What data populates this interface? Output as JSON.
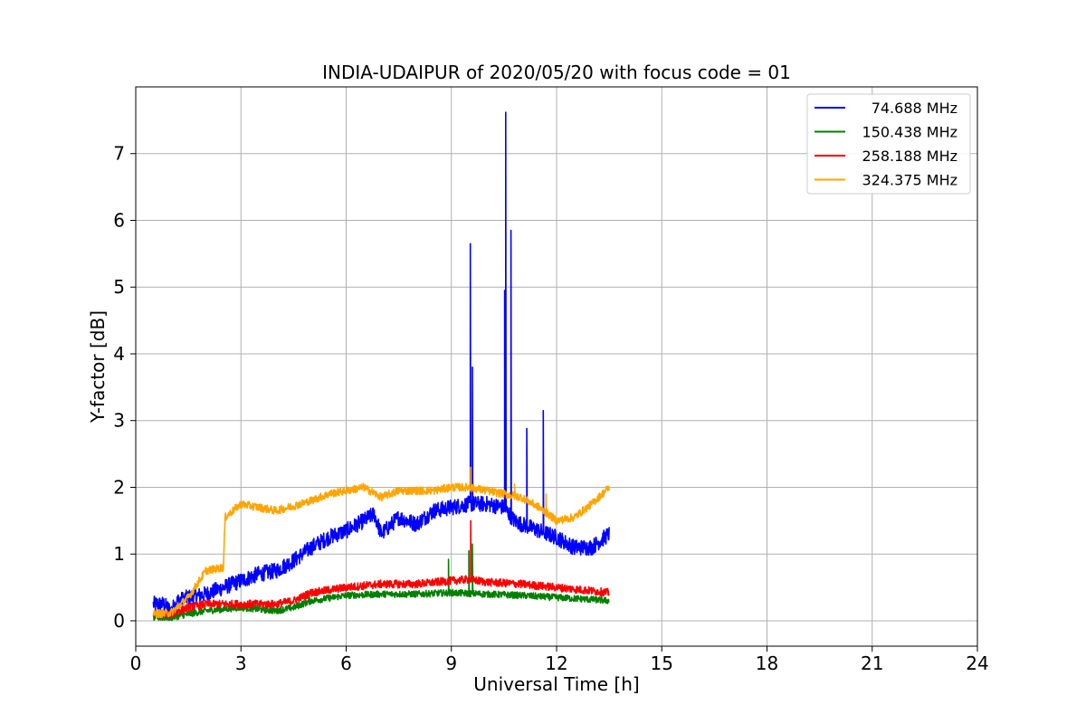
{
  "chart_data": {
    "type": "line",
    "title": "INDIA-UDAIPUR of 2020/05/20 with focus code = 01",
    "xlabel": "Universal Time [h]",
    "ylabel": "Y-factor [dB]",
    "xlim": [
      0,
      24
    ],
    "ylim": [
      -0.38,
      8.0
    ],
    "xticks": [
      0,
      3,
      6,
      9,
      12,
      15,
      18,
      21,
      24
    ],
    "yticks": [
      0,
      1,
      2,
      3,
      4,
      5,
      6,
      7
    ],
    "grid": true,
    "legend_position": "top-right",
    "series": [
      {
        "name": "74.688 MHz",
        "color": "#0000ff",
        "noise": 0.12,
        "points": [
          [
            0.5,
            0.25
          ],
          [
            0.8,
            0.25
          ],
          [
            1.0,
            0.15
          ],
          [
            1.2,
            0.3
          ],
          [
            1.5,
            0.35
          ],
          [
            2.0,
            0.4
          ],
          [
            2.5,
            0.5
          ],
          [
            3.0,
            0.6
          ],
          [
            3.5,
            0.7
          ],
          [
            4.0,
            0.75
          ],
          [
            4.5,
            0.9
          ],
          [
            5.0,
            1.1
          ],
          [
            5.5,
            1.25
          ],
          [
            6.0,
            1.35
          ],
          [
            6.5,
            1.5
          ],
          [
            6.8,
            1.6
          ],
          [
            7.0,
            1.3
          ],
          [
            7.5,
            1.55
          ],
          [
            8.0,
            1.45
          ],
          [
            8.5,
            1.65
          ],
          [
            9.0,
            1.7
          ],
          [
            9.5,
            1.75
          ],
          [
            10.0,
            1.75
          ],
          [
            10.5,
            1.7
          ],
          [
            10.8,
            1.5
          ],
          [
            11.0,
            1.45
          ],
          [
            11.5,
            1.35
          ],
          [
            12.0,
            1.25
          ],
          [
            12.5,
            1.1
          ],
          [
            13.0,
            1.1
          ],
          [
            13.5,
            1.3
          ]
        ],
        "spikes": [
          [
            9.54,
            5.65
          ],
          [
            9.6,
            3.8
          ],
          [
            10.55,
            7.62
          ],
          [
            10.7,
            5.85
          ],
          [
            10.52,
            4.95
          ],
          [
            11.15,
            2.88
          ],
          [
            11.62,
            3.15
          ]
        ]
      },
      {
        "name": "150.438 MHz",
        "color": "#008000",
        "noise": 0.05,
        "points": [
          [
            0.5,
            0.05
          ],
          [
            1.0,
            0.05
          ],
          [
            2.0,
            0.15
          ],
          [
            3.0,
            0.2
          ],
          [
            4.0,
            0.15
          ],
          [
            4.5,
            0.2
          ],
          [
            5.0,
            0.3
          ],
          [
            6.0,
            0.38
          ],
          [
            7.0,
            0.4
          ],
          [
            8.0,
            0.4
          ],
          [
            9.0,
            0.42
          ],
          [
            10.0,
            0.4
          ],
          [
            11.0,
            0.38
          ],
          [
            12.0,
            0.35
          ],
          [
            13.0,
            0.32
          ],
          [
            13.5,
            0.3
          ]
        ],
        "spikes": [
          [
            8.92,
            0.92
          ],
          [
            9.5,
            1.05
          ],
          [
            9.6,
            1.15
          ]
        ]
      },
      {
        "name": "258.188 MHz",
        "color": "#ff0000",
        "noise": 0.06,
        "points": [
          [
            0.5,
            0.1
          ],
          [
            1.0,
            0.1
          ],
          [
            1.5,
            0.2
          ],
          [
            2.0,
            0.25
          ],
          [
            3.0,
            0.25
          ],
          [
            4.0,
            0.25
          ],
          [
            4.5,
            0.3
          ],
          [
            5.0,
            0.42
          ],
          [
            6.0,
            0.5
          ],
          [
            7.0,
            0.55
          ],
          [
            8.0,
            0.55
          ],
          [
            9.0,
            0.6
          ],
          [
            9.5,
            0.62
          ],
          [
            10.0,
            0.58
          ],
          [
            11.0,
            0.55
          ],
          [
            12.0,
            0.5
          ],
          [
            13.0,
            0.45
          ],
          [
            13.5,
            0.42
          ]
        ],
        "spikes": [
          [
            9.55,
            1.5
          ]
        ]
      },
      {
        "name": "324.375 MHz",
        "color": "#ffa500",
        "noise": 0.06,
        "points": [
          [
            0.5,
            0.1
          ],
          [
            1.0,
            0.12
          ],
          [
            1.5,
            0.35
          ],
          [
            2.0,
            0.75
          ],
          [
            2.5,
            0.8
          ],
          [
            2.55,
            1.55
          ],
          [
            3.0,
            1.75
          ],
          [
            3.5,
            1.7
          ],
          [
            4.0,
            1.65
          ],
          [
            4.5,
            1.72
          ],
          [
            5.0,
            1.8
          ],
          [
            5.5,
            1.9
          ],
          [
            6.0,
            1.95
          ],
          [
            6.5,
            2.0
          ],
          [
            7.0,
            1.85
          ],
          [
            7.5,
            1.95
          ],
          [
            8.0,
            1.95
          ],
          [
            8.5,
            1.95
          ],
          [
            9.0,
            2.0
          ],
          [
            9.5,
            2.0
          ],
          [
            10.0,
            1.95
          ],
          [
            10.5,
            1.9
          ],
          [
            11.0,
            1.85
          ],
          [
            11.5,
            1.7
          ],
          [
            12.0,
            1.5
          ],
          [
            12.5,
            1.55
          ],
          [
            13.0,
            1.75
          ],
          [
            13.5,
            2.0
          ]
        ],
        "spikes": [
          [
            9.55,
            2.3
          ],
          [
            10.8,
            2.05
          ],
          [
            11.7,
            1.9
          ]
        ]
      }
    ]
  }
}
